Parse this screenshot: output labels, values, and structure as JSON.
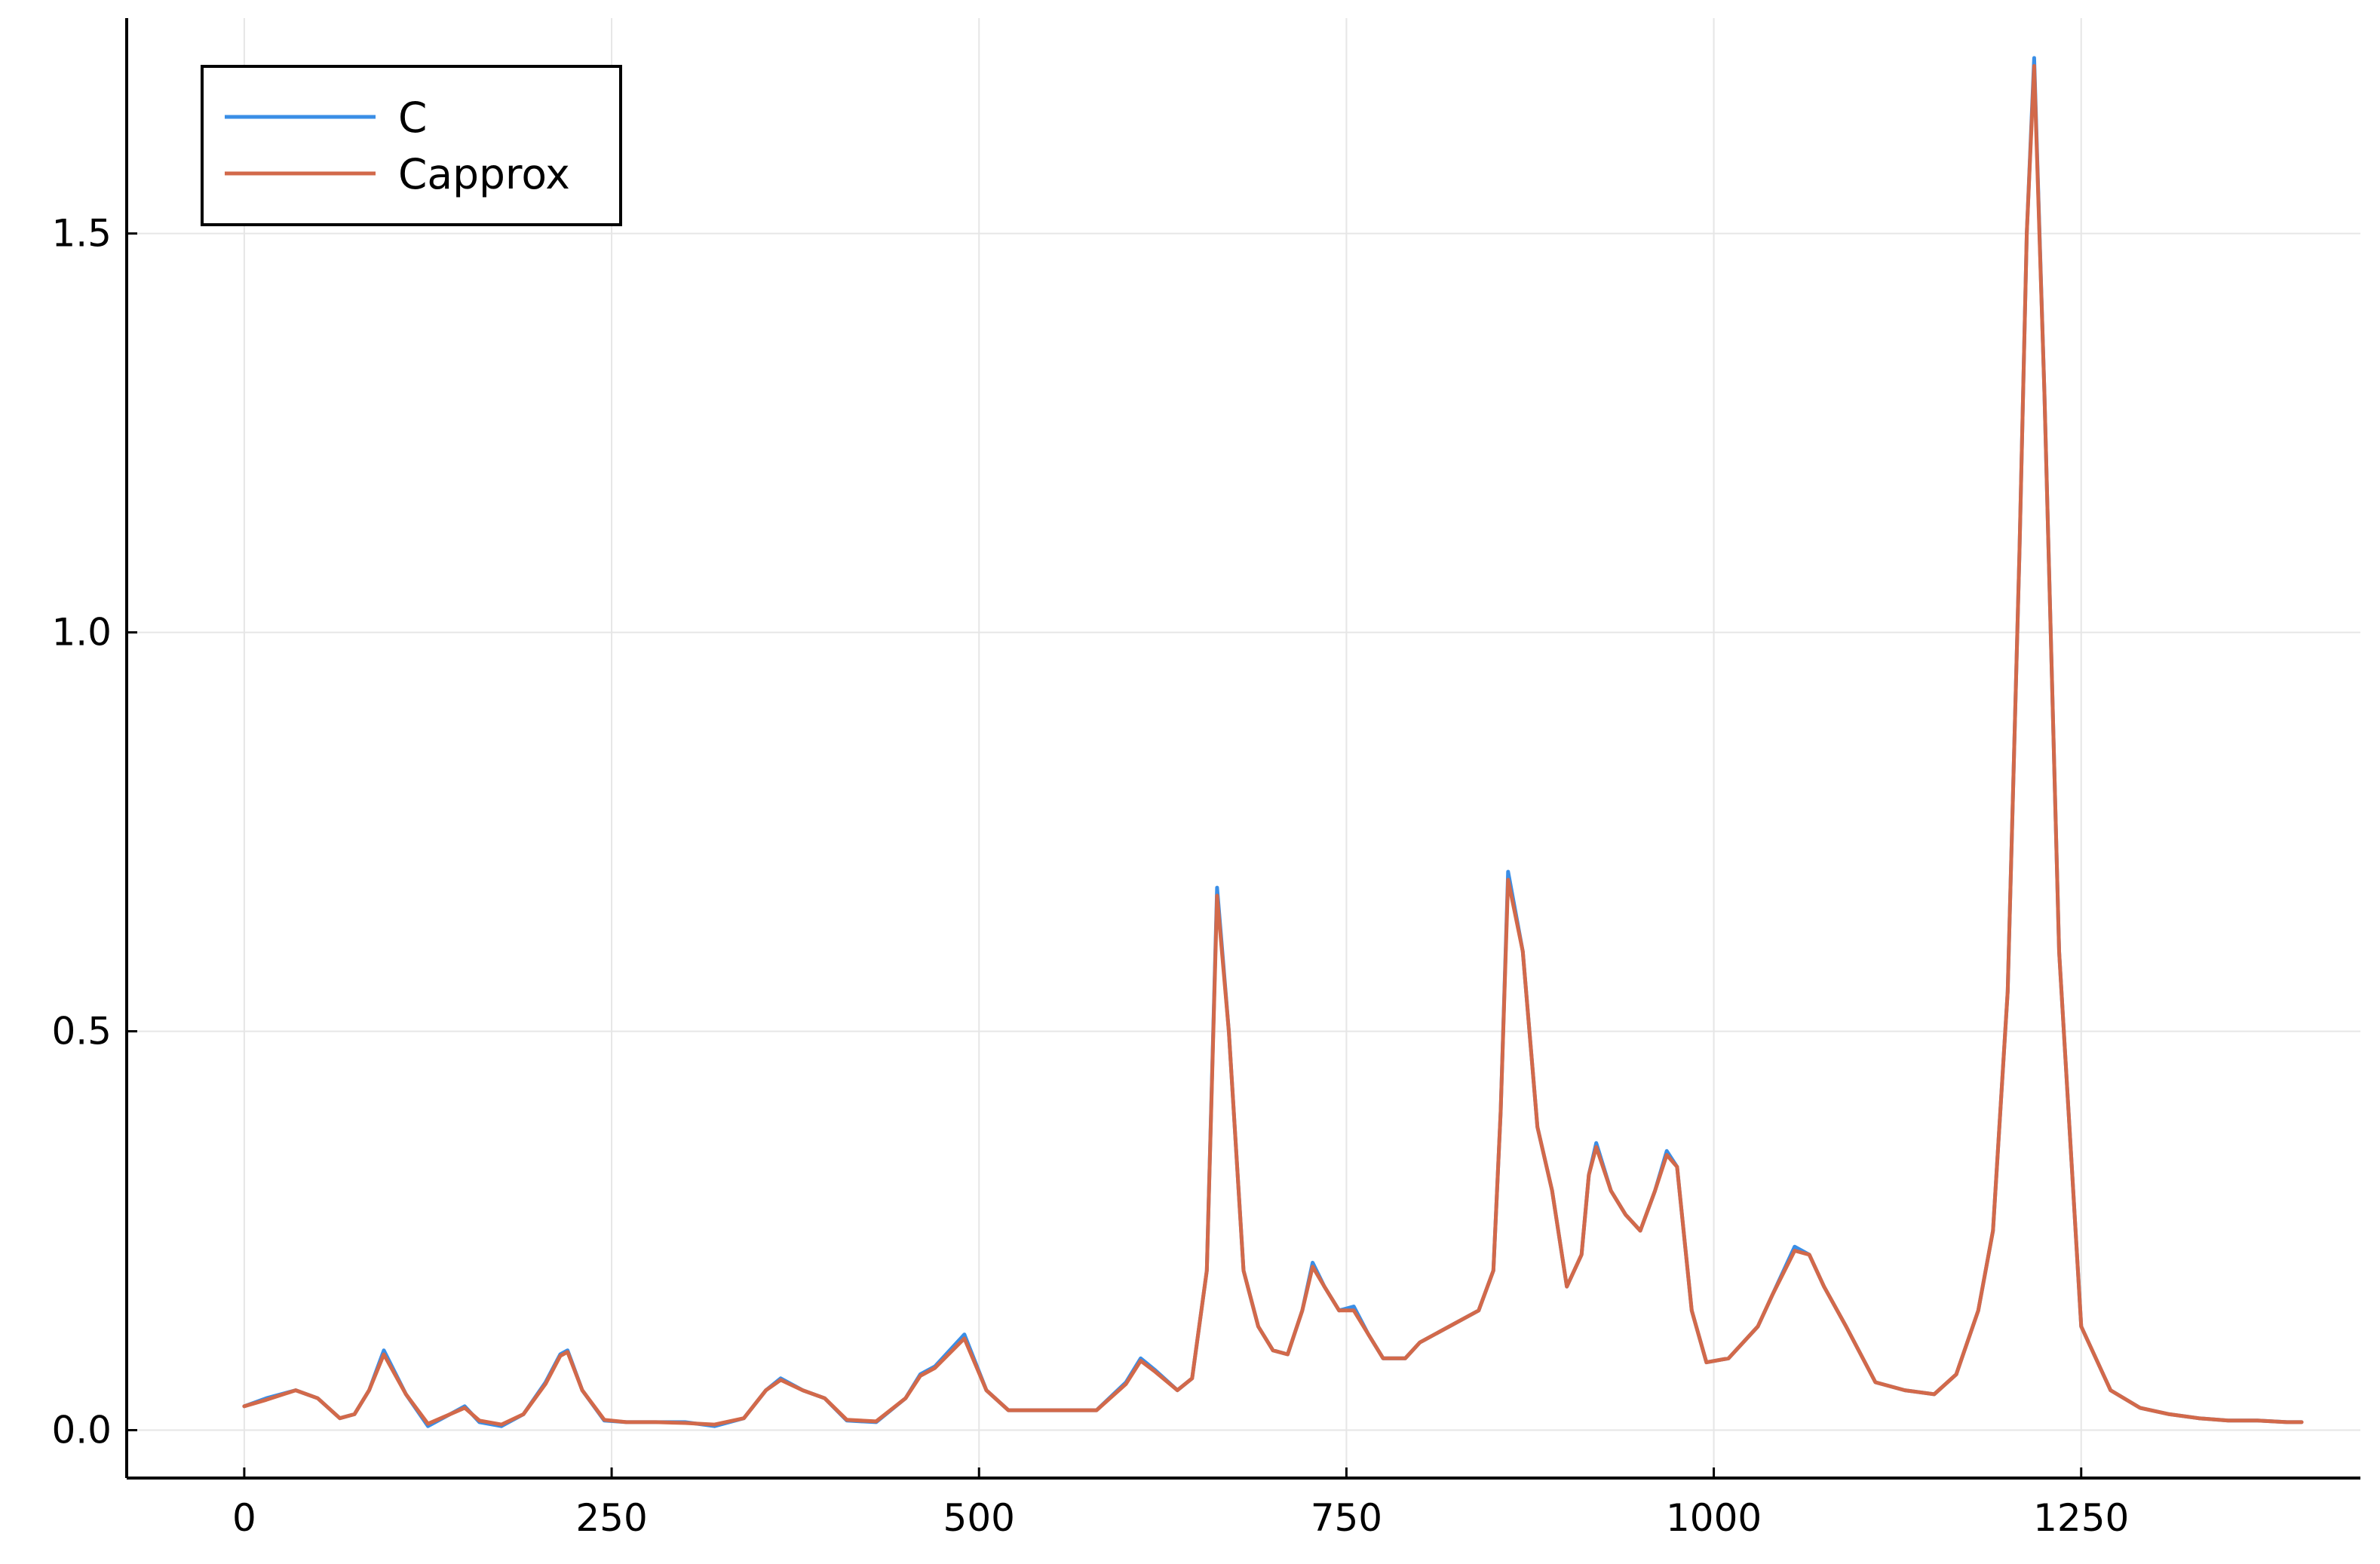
{
  "chart_data": {
    "type": "line",
    "title": "",
    "xlabel": "",
    "ylabel": "",
    "xlim": [
      -80,
      1440
    ],
    "ylim": [
      -0.06,
      1.77
    ],
    "grid": true,
    "legend_position": "top-left",
    "xticks": [
      0,
      250,
      500,
      750,
      1000,
      1250
    ],
    "xtick_labels": [
      "0",
      "250",
      "500",
      "750",
      "1000",
      "1250"
    ],
    "yticks": [
      0.0,
      0.5,
      1.0,
      1.5
    ],
    "ytick_labels": [
      "0.0",
      "0.5",
      "1.0",
      "1.5"
    ],
    "series": [
      {
        "name": "C",
        "color": "#3A8EE6",
        "x": [
          0,
          15,
          35,
          50,
          65,
          75,
          85,
          95,
          110,
          125,
          140,
          150,
          160,
          175,
          190,
          205,
          215,
          220,
          230,
          245,
          260,
          280,
          300,
          320,
          340,
          355,
          365,
          380,
          395,
          410,
          430,
          450,
          460,
          470,
          490,
          505,
          520,
          540,
          560,
          580,
          600,
          610,
          620,
          635,
          645,
          655,
          662,
          670,
          680,
          690,
          700,
          710,
          720,
          727,
          735,
          745,
          755,
          765,
          775,
          790,
          800,
          820,
          840,
          850,
          855,
          860,
          870,
          880,
          890,
          900,
          910,
          915,
          920,
          930,
          940,
          950,
          960,
          968,
          975,
          985,
          995,
          1010,
          1030,
          1040,
          1055,
          1065,
          1075,
          1090,
          1110,
          1130,
          1150,
          1165,
          1180,
          1190,
          1200,
          1208,
          1213,
          1218,
          1225,
          1235,
          1250,
          1270,
          1290,
          1310,
          1330,
          1350,
          1370,
          1390,
          1400
        ],
        "y": [
          0.03,
          0.04,
          0.05,
          0.04,
          0.015,
          0.02,
          0.05,
          0.1,
          0.045,
          0.005,
          0.02,
          0.03,
          0.01,
          0.005,
          0.02,
          0.06,
          0.095,
          0.1,
          0.05,
          0.012,
          0.01,
          0.01,
          0.01,
          0.005,
          0.015,
          0.05,
          0.065,
          0.05,
          0.04,
          0.012,
          0.01,
          0.04,
          0.07,
          0.08,
          0.12,
          0.05,
          0.025,
          0.025,
          0.025,
          0.025,
          0.06,
          0.09,
          0.075,
          0.05,
          0.065,
          0.2,
          0.68,
          0.5,
          0.2,
          0.13,
          0.1,
          0.095,
          0.15,
          0.21,
          0.18,
          0.15,
          0.155,
          0.12,
          0.09,
          0.09,
          0.11,
          0.13,
          0.15,
          0.2,
          0.4,
          0.7,
          0.6,
          0.38,
          0.3,
          0.18,
          0.22,
          0.32,
          0.36,
          0.3,
          0.27,
          0.25,
          0.3,
          0.35,
          0.33,
          0.15,
          0.085,
          0.09,
          0.13,
          0.17,
          0.23,
          0.22,
          0.18,
          0.13,
          0.06,
          0.05,
          0.045,
          0.07,
          0.15,
          0.25,
          0.55,
          1.1,
          1.5,
          1.72,
          1.3,
          0.6,
          0.13,
          0.05,
          0.028,
          0.02,
          0.015,
          0.012,
          0.012,
          0.01,
          0.01
        ]
      },
      {
        "name": "Capprox",
        "color": "#D2694A",
        "x": [
          0,
          15,
          35,
          50,
          65,
          75,
          85,
          95,
          110,
          125,
          140,
          150,
          160,
          175,
          190,
          205,
          215,
          220,
          230,
          245,
          260,
          280,
          300,
          320,
          340,
          355,
          365,
          380,
          395,
          410,
          430,
          450,
          460,
          470,
          490,
          505,
          520,
          540,
          560,
          580,
          600,
          610,
          620,
          635,
          645,
          655,
          662,
          670,
          680,
          690,
          700,
          710,
          720,
          727,
          735,
          745,
          755,
          765,
          775,
          790,
          800,
          820,
          840,
          850,
          855,
          860,
          870,
          880,
          890,
          900,
          910,
          915,
          920,
          930,
          940,
          950,
          960,
          968,
          975,
          985,
          995,
          1010,
          1030,
          1040,
          1055,
          1065,
          1075,
          1090,
          1110,
          1130,
          1150,
          1165,
          1180,
          1190,
          1200,
          1208,
          1213,
          1218,
          1225,
          1235,
          1250,
          1270,
          1290,
          1310,
          1330,
          1350,
          1370,
          1390,
          1400
        ],
        "y": [
          0.03,
          0.038,
          0.05,
          0.04,
          0.015,
          0.02,
          0.05,
          0.095,
          0.045,
          0.008,
          0.02,
          0.028,
          0.012,
          0.007,
          0.02,
          0.058,
          0.093,
          0.098,
          0.05,
          0.013,
          0.01,
          0.01,
          0.009,
          0.007,
          0.015,
          0.05,
          0.063,
          0.05,
          0.04,
          0.013,
          0.011,
          0.04,
          0.068,
          0.078,
          0.115,
          0.05,
          0.025,
          0.025,
          0.025,
          0.025,
          0.058,
          0.087,
          0.073,
          0.05,
          0.065,
          0.2,
          0.67,
          0.5,
          0.2,
          0.13,
          0.1,
          0.095,
          0.15,
          0.205,
          0.18,
          0.15,
          0.15,
          0.12,
          0.09,
          0.09,
          0.11,
          0.13,
          0.15,
          0.2,
          0.4,
          0.69,
          0.6,
          0.38,
          0.3,
          0.18,
          0.22,
          0.32,
          0.355,
          0.3,
          0.27,
          0.25,
          0.3,
          0.345,
          0.33,
          0.15,
          0.085,
          0.09,
          0.13,
          0.17,
          0.225,
          0.22,
          0.18,
          0.13,
          0.06,
          0.05,
          0.045,
          0.07,
          0.15,
          0.25,
          0.55,
          1.1,
          1.5,
          1.71,
          1.3,
          0.6,
          0.13,
          0.05,
          0.028,
          0.02,
          0.015,
          0.012,
          0.012,
          0.01,
          0.01
        ]
      }
    ]
  }
}
